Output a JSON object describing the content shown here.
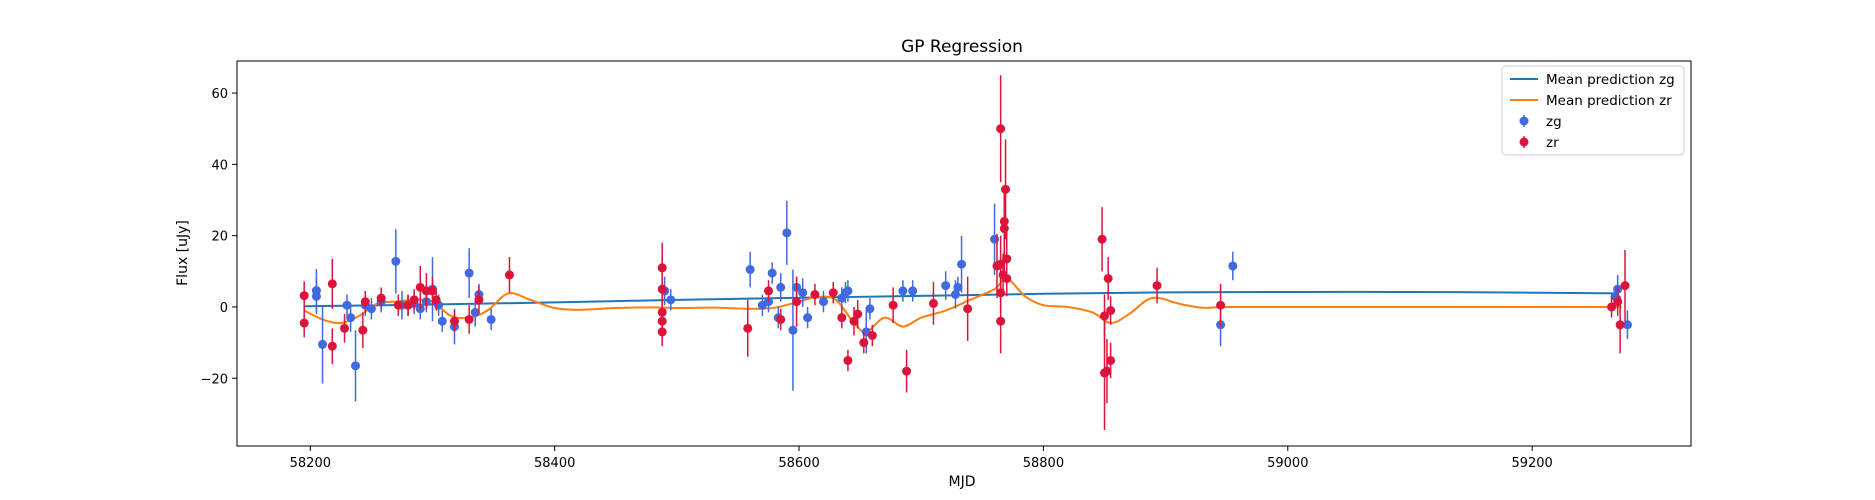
{
  "chart_data": {
    "type": "scatter",
    "title": "GP Regression",
    "xlabel": "MJD",
    "ylabel": "Flux [uJy]",
    "xlim": [
      58140,
      59330
    ],
    "ylim": [
      -39,
      69
    ],
    "xticks": [
      58200,
      58400,
      58600,
      58800,
      59000,
      59200
    ],
    "yticks": [
      -20,
      0,
      20,
      40,
      60
    ],
    "grid": false,
    "legend_position": "top-right",
    "colors": {
      "zg_line": "#1f77b4",
      "zr_line": "#ff7f0e",
      "zg_points": "#4169e1",
      "zr_points": "#dc143c"
    },
    "lines": [
      {
        "name": "Mean prediction zg",
        "x": [
          58195,
          58300,
          58400,
          58500,
          58600,
          58700,
          58800,
          58900,
          59000,
          59100,
          59200,
          59270
        ],
        "y": [
          0.2,
          0.7,
          1.3,
          2.0,
          2.6,
          3.1,
          3.7,
          4.1,
          4.2,
          4.2,
          4.0,
          3.8
        ]
      },
      {
        "name": "Mean prediction zr",
        "x": [
          58195,
          58210,
          58225,
          58240,
          58255,
          58270,
          58285,
          58300,
          58315,
          58330,
          58345,
          58362,
          58380,
          58400,
          58420,
          58450,
          58480,
          58500,
          58530,
          58560,
          58580,
          58600,
          58615,
          58630,
          58645,
          58655,
          58670,
          58685,
          58700,
          58720,
          58740,
          58760,
          58770,
          58785,
          58800,
          58820,
          58840,
          58855,
          58870,
          58885,
          58895,
          58910,
          58930,
          58950,
          59000,
          59100,
          59200,
          59265,
          59272
        ],
        "y": [
          -1,
          -3.5,
          -4.5,
          -2.5,
          1,
          1.5,
          2,
          1.5,
          -2.5,
          -3,
          -1,
          3.8,
          2,
          -0.3,
          -0.8,
          -0.3,
          -0.1,
          -0.3,
          -0.2,
          -0.5,
          -0.2,
          1.5,
          2.8,
          2,
          -4.5,
          -7,
          -3,
          -5.5,
          -3,
          -1,
          2,
          5,
          8,
          3,
          0.5,
          0,
          -1.5,
          -4.5,
          -2,
          2,
          2.5,
          1,
          -0.2,
          0,
          0,
          0,
          0,
          0,
          0
        ]
      }
    ],
    "scatter": [
      {
        "name": "zg",
        "points": [
          [
            58205,
            4.6,
            6
          ],
          [
            58205,
            3,
            5
          ],
          [
            58210,
            -10.5,
            11
          ],
          [
            58230,
            0.5,
            3
          ],
          [
            58233,
            -3,
            4
          ],
          [
            58237,
            -16.5,
            10
          ],
          [
            58245,
            0.5,
            3
          ],
          [
            58250,
            -0.5,
            3
          ],
          [
            58258,
            1.5,
            3
          ],
          [
            58270,
            12.8,
            9
          ],
          [
            58275,
            0.5,
            4
          ],
          [
            58280,
            0.5,
            3
          ],
          [
            58285,
            1,
            3
          ],
          [
            58290,
            -0.5,
            3
          ],
          [
            58295,
            1.5,
            3
          ],
          [
            58300,
            5,
            9
          ],
          [
            58305,
            0.5,
            3
          ],
          [
            58308,
            -4,
            3
          ],
          [
            58318,
            -5.5,
            5
          ],
          [
            58330,
            9.5,
            7
          ],
          [
            58335,
            -1.5,
            4
          ],
          [
            58338,
            3.5,
            3
          ],
          [
            58348,
            -3.5,
            3
          ],
          [
            58490,
            4.5,
            4
          ],
          [
            58495,
            2,
            3
          ],
          [
            58560,
            10.5,
            5
          ],
          [
            58570,
            0.5,
            3
          ],
          [
            58575,
            1.5,
            3
          ],
          [
            58578,
            9.5,
            3
          ],
          [
            58583,
            -3,
            3
          ],
          [
            58585,
            5.5,
            4
          ],
          [
            58590,
            20.8,
            9
          ],
          [
            58595,
            -6.5,
            17
          ],
          [
            58598,
            5.5,
            3
          ],
          [
            58603,
            4,
            4
          ],
          [
            58607,
            -3,
            3
          ],
          [
            58620,
            1.5,
            3
          ],
          [
            58635,
            2.5,
            3
          ],
          [
            58638,
            4,
            3
          ],
          [
            58640,
            4.5,
            3
          ],
          [
            58655,
            -7,
            6
          ],
          [
            58658,
            -0.5,
            3
          ],
          [
            58685,
            4.5,
            3
          ],
          [
            58693,
            4.5,
            3
          ],
          [
            58720,
            6,
            4
          ],
          [
            58728,
            3.5,
            4
          ],
          [
            58730,
            5.5,
            3
          ],
          [
            58733,
            12,
            8
          ],
          [
            58760,
            19,
            10
          ],
          [
            58945,
            -5,
            6
          ],
          [
            58955,
            11.5,
            4
          ],
          [
            59268,
            3,
            3
          ],
          [
            59270,
            5,
            4
          ],
          [
            59278,
            -5,
            4
          ]
        ]
      },
      {
        "name": "zr",
        "points": [
          [
            58195,
            3.2,
            4
          ],
          [
            58195,
            -4.5,
            4
          ],
          [
            58218,
            6.5,
            7
          ],
          [
            58218,
            -11,
            5
          ],
          [
            58228,
            -6,
            4
          ],
          [
            58243,
            -6.5,
            5
          ],
          [
            58245,
            1.5,
            3
          ],
          [
            58258,
            2.5,
            3
          ],
          [
            58272,
            0.5,
            3
          ],
          [
            58280,
            0.5,
            3
          ],
          [
            58285,
            2,
            3
          ],
          [
            58290,
            5.5,
            6
          ],
          [
            58295,
            4.5,
            5
          ],
          [
            58300,
            4.5,
            4
          ],
          [
            58303,
            2,
            3
          ],
          [
            58318,
            -4,
            3
          ],
          [
            58330,
            -3.5,
            4
          ],
          [
            58338,
            2,
            4
          ],
          [
            58363,
            9,
            5
          ],
          [
            58488,
            11,
            7
          ],
          [
            58488,
            5,
            8
          ],
          [
            58488,
            -1.5,
            5
          ],
          [
            58488,
            -4,
            5
          ],
          [
            58488,
            -7,
            4
          ],
          [
            58558,
            -6,
            8
          ],
          [
            58575,
            4.5,
            3
          ],
          [
            58585,
            -3.5,
            3
          ],
          [
            58598,
            1.5,
            7
          ],
          [
            58613,
            3.5,
            3
          ],
          [
            58628,
            4,
            3
          ],
          [
            58635,
            -3,
            3
          ],
          [
            58640,
            -15,
            3
          ],
          [
            58645,
            -4,
            4
          ],
          [
            58648,
            -2,
            4
          ],
          [
            58653,
            -10,
            3
          ],
          [
            58660,
            -8,
            3
          ],
          [
            58677,
            0.5,
            5
          ],
          [
            58688,
            -18,
            6
          ],
          [
            58710,
            1,
            6
          ],
          [
            58738,
            -0.5,
            9
          ],
          [
            58762,
            11.5,
            9
          ],
          [
            58765,
            50,
            15
          ],
          [
            58765,
            12,
            8
          ],
          [
            58765,
            4,
            6
          ],
          [
            58765,
            -4,
            9
          ],
          [
            58767,
            9,
            6
          ],
          [
            58768,
            24,
            9
          ],
          [
            58768,
            22,
            12
          ],
          [
            58769,
            33,
            14
          ],
          [
            58770,
            13.5,
            8
          ],
          [
            58770,
            8,
            5
          ],
          [
            58848,
            19,
            9
          ],
          [
            58850,
            -2.5,
            6
          ],
          [
            58850,
            -18.5,
            16
          ],
          [
            58852,
            -18,
            9
          ],
          [
            58853,
            8,
            6
          ],
          [
            58855,
            -1,
            4
          ],
          [
            58855,
            -15,
            5
          ],
          [
            58893,
            6,
            5
          ],
          [
            58945,
            0.5,
            6
          ],
          [
            59265,
            0,
            3
          ],
          [
            59270,
            1.5,
            4
          ],
          [
            59272,
            -5,
            8
          ],
          [
            59276,
            6,
            10
          ]
        ]
      }
    ],
    "legend": [
      "Mean prediction zg",
      "Mean prediction zr",
      "zg",
      "zr"
    ]
  }
}
